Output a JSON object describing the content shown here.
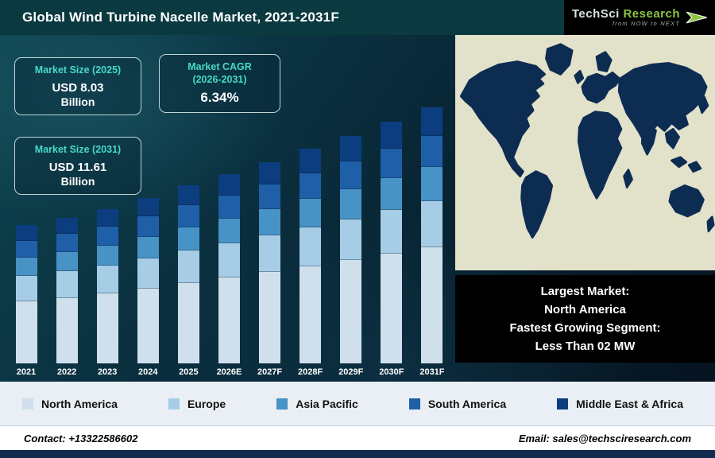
{
  "header": {
    "title": "Global Wind Turbine Nacelle Market, 2021-2031F"
  },
  "logo": {
    "brand_primary": "TechSci",
    "brand_secondary": "Research",
    "tagline": "from NOW to NEXT"
  },
  "stats": {
    "market_size_2025": {
      "label": "Market Size (2025)",
      "value": "USD 8.03",
      "unit": "Billion"
    },
    "market_cagr": {
      "label_line1": "Market CAGR",
      "label_line2": "(2026-2031)",
      "value": "6.34%"
    },
    "market_size_2031": {
      "label": "Market Size (2031)",
      "value": "USD 11.61",
      "unit": "Billion"
    }
  },
  "callout": {
    "line1": "Largest Market:",
    "line2": "North America",
    "line3": "Fastest Growing Segment:",
    "line4": "Less Than 02 MW"
  },
  "legend": {
    "items": [
      {
        "label": "North America",
        "color": "#cfe0ec"
      },
      {
        "label": "Europe",
        "color": "#a6cde5"
      },
      {
        "label": "Asia Pacific",
        "color": "#4793c6"
      },
      {
        "label": "South America",
        "color": "#1f5fa8"
      },
      {
        "label": "Middle East & Africa",
        "color": "#0b3d7f"
      }
    ]
  },
  "footer": {
    "contact": "Contact: +13322586602",
    "email": "Email: sales@techsciresearch.com"
  },
  "chart_data": {
    "type": "bar",
    "stacked": true,
    "title": "Global Wind Turbine Nacelle Market, 2021-2031F",
    "unit": "USD Billion",
    "categories": [
      "2021",
      "2022",
      "2023",
      "2024",
      "2025",
      "2026E",
      "2027F",
      "2028F",
      "2029F",
      "2030F",
      "2031F"
    ],
    "series": [
      {
        "name": "North America",
        "color": "#cfe0ec",
        "values": [
          2.85,
          3.01,
          3.2,
          3.43,
          3.69,
          3.93,
          4.19,
          4.46,
          4.74,
          5.04,
          5.34
        ]
      },
      {
        "name": "Europe",
        "color": "#a6cde5",
        "values": [
          1.12,
          1.18,
          1.25,
          1.34,
          1.45,
          1.54,
          1.64,
          1.75,
          1.85,
          1.97,
          2.09
        ]
      },
      {
        "name": "Asia Pacific",
        "color": "#4793c6",
        "values": [
          0.81,
          0.85,
          0.9,
          0.97,
          1.04,
          1.11,
          1.18,
          1.26,
          1.34,
          1.42,
          1.51
        ]
      },
      {
        "name": "South America",
        "color": "#1f5fa8",
        "values": [
          0.74,
          0.79,
          0.83,
          0.89,
          0.96,
          1.03,
          1.09,
          1.16,
          1.24,
          1.31,
          1.39
        ]
      },
      {
        "name": "Middle East & Africa",
        "color": "#0b3d7f",
        "values": [
          0.68,
          0.72,
          0.77,
          0.82,
          0.89,
          0.94,
          1.0,
          1.07,
          1.13,
          1.21,
          1.28
        ]
      }
    ],
    "totals": [
      6.2,
      6.55,
      6.95,
      7.45,
      8.03,
      8.55,
      9.1,
      9.7,
      10.3,
      10.95,
      11.61
    ],
    "ylim": [
      0,
      12
    ],
    "legend_position": "bottom",
    "annotations": [
      "Market Size (2025): USD 8.03 Billion",
      "Market CAGR (2026-2031): 6.34%",
      "Market Size (2031): USD 11.61 Billion"
    ]
  }
}
